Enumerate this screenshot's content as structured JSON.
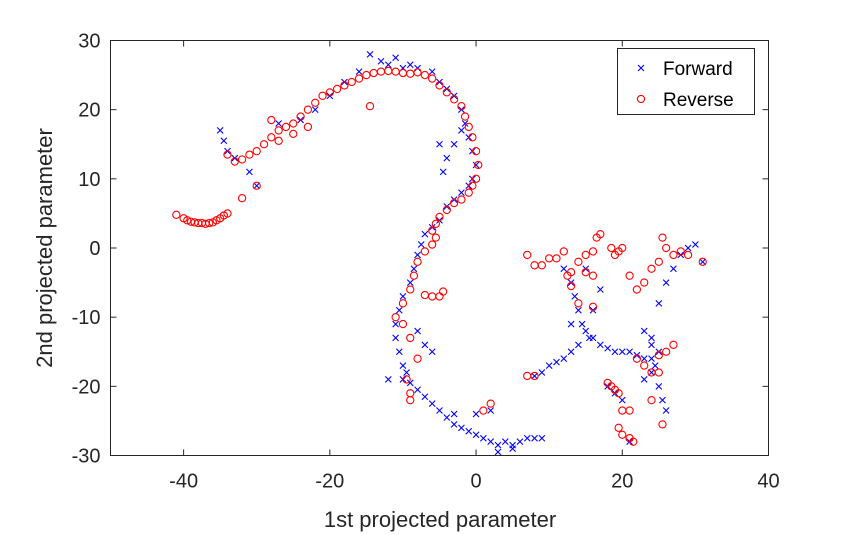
{
  "chart_data": {
    "type": "scatter",
    "title": "",
    "xlabel": "1st projected parameter",
    "ylabel": "2nd projected parameter",
    "xlim": [
      -50,
      40
    ],
    "ylim": [
      -30,
      30
    ],
    "xticks": [
      -40,
      -20,
      0,
      20,
      40
    ],
    "yticks": [
      -30,
      -20,
      -10,
      0,
      10,
      20,
      30
    ],
    "xtick_labels": [
      "-40",
      "-20",
      "0",
      "20",
      "40"
    ],
    "ytick_labels": [
      "-30",
      "-20",
      "-10",
      "0",
      "10",
      "20",
      "30"
    ],
    "grid": false,
    "legend_position": "top-right",
    "series": [
      {
        "name": "Forward",
        "marker": "x",
        "color": "#0000ff",
        "points": [
          [
            -35,
            17
          ],
          [
            -34.5,
            15.5
          ],
          [
            -34,
            14
          ],
          [
            -33,
            13
          ],
          [
            -31,
            11
          ],
          [
            -30,
            9
          ],
          [
            -27,
            18
          ],
          [
            -24,
            18.5
          ],
          [
            -22,
            20
          ],
          [
            -20,
            22
          ],
          [
            -18,
            24
          ],
          [
            -16,
            25.5
          ],
          [
            -14.5,
            28
          ],
          [
            -13,
            27
          ],
          [
            -12,
            26.5
          ],
          [
            -11,
            27.5
          ],
          [
            -10,
            26
          ],
          [
            -9,
            26.5
          ],
          [
            -8,
            26
          ],
          [
            -6,
            25.5
          ],
          [
            -5,
            24
          ],
          [
            -4,
            23
          ],
          [
            -3,
            22
          ],
          [
            -2,
            20
          ],
          [
            -1.5,
            18
          ],
          [
            -1,
            16
          ],
          [
            -0.5,
            14
          ],
          [
            0,
            12
          ],
          [
            -0.5,
            10
          ],
          [
            -1,
            9
          ],
          [
            -2,
            8
          ],
          [
            -3,
            7
          ],
          [
            -4,
            6
          ],
          [
            -5,
            4
          ],
          [
            -6,
            3
          ],
          [
            -7,
            2
          ],
          [
            -7.5,
            0.5
          ],
          [
            -8,
            -1
          ],
          [
            -8.5,
            -3
          ],
          [
            -9,
            -5
          ],
          [
            -10,
            -7
          ],
          [
            -10.5,
            -9
          ],
          [
            -11,
            -11
          ],
          [
            -11,
            -13
          ],
          [
            -10.5,
            -15
          ],
          [
            -10,
            -17
          ],
          [
            -9.5,
            -18
          ],
          [
            -9,
            -19.5
          ],
          [
            -8,
            -20.5
          ],
          [
            -7,
            -21.5
          ],
          [
            -6,
            -22.5
          ],
          [
            -5,
            -23.5
          ],
          [
            -4,
            -24.5
          ],
          [
            -3,
            -25.5
          ],
          [
            -2,
            -26
          ],
          [
            -1,
            -26.5
          ],
          [
            0,
            -27
          ],
          [
            1,
            -27.5
          ],
          [
            2,
            -28
          ],
          [
            3,
            -28.5
          ],
          [
            4,
            -28
          ],
          [
            5,
            -28.5
          ],
          [
            6,
            -28
          ],
          [
            7,
            -27.5
          ],
          [
            8,
            -27.5
          ],
          [
            9,
            -27.5
          ],
          [
            -4,
            13
          ],
          [
            -5,
            15
          ],
          [
            -3,
            15
          ],
          [
            -2,
            17
          ],
          [
            -4.5,
            11
          ],
          [
            -10,
            -19
          ],
          [
            -7,
            -14
          ],
          [
            -6,
            -15
          ],
          [
            -8,
            -12
          ],
          [
            -12,
            -19
          ],
          [
            -3,
            -24
          ],
          [
            0,
            -24
          ],
          [
            2,
            -23.5
          ],
          [
            3,
            -29.5
          ],
          [
            5,
            -29
          ],
          [
            13,
            -5
          ],
          [
            13.5,
            -7
          ],
          [
            14,
            -9
          ],
          [
            14.5,
            -11
          ],
          [
            15,
            -12
          ],
          [
            15.5,
            -13
          ],
          [
            14,
            -14
          ],
          [
            13,
            -15
          ],
          [
            12,
            -16
          ],
          [
            11,
            -16.5
          ],
          [
            10,
            -17
          ],
          [
            9,
            -18
          ],
          [
            8,
            -18.5
          ],
          [
            16,
            -13
          ],
          [
            17,
            -14
          ],
          [
            18,
            -14.5
          ],
          [
            19,
            -15
          ],
          [
            20,
            -15
          ],
          [
            21,
            -15
          ],
          [
            22,
            -15.5
          ],
          [
            23,
            -16
          ],
          [
            24,
            -16
          ],
          [
            24.5,
            -17
          ],
          [
            24,
            -18
          ],
          [
            23,
            -19
          ],
          [
            24,
            -13
          ],
          [
            24,
            -14
          ],
          [
            25,
            -15
          ],
          [
            25,
            -20
          ],
          [
            25.5,
            -22
          ],
          [
            26,
            -23.5
          ],
          [
            23,
            -12
          ],
          [
            25,
            -8
          ],
          [
            26,
            -5
          ],
          [
            27,
            -3
          ],
          [
            28,
            -1
          ],
          [
            29,
            0
          ],
          [
            30,
            0.5
          ],
          [
            31,
            -2
          ],
          [
            16,
            -9
          ],
          [
            17,
            -6
          ],
          [
            13,
            -11
          ],
          [
            12,
            -3
          ],
          [
            15,
            -3
          ],
          [
            18,
            -20
          ],
          [
            19,
            -21
          ],
          [
            20,
            -22
          ],
          [
            21,
            -28
          ]
        ]
      },
      {
        "name": "Reverse",
        "marker": "o",
        "color": "#ff0000",
        "points": [
          [
            -41,
            4.8
          ],
          [
            -40,
            4.3
          ],
          [
            -39.5,
            4
          ],
          [
            -39,
            3.8
          ],
          [
            -38.5,
            3.7
          ],
          [
            -38,
            3.6
          ],
          [
            -37.5,
            3.6
          ],
          [
            -37,
            3.5
          ],
          [
            -36.5,
            3.6
          ],
          [
            -36,
            3.7
          ],
          [
            -35.5,
            4
          ],
          [
            -35,
            4.3
          ],
          [
            -34.5,
            4.7
          ],
          [
            -34,
            5
          ],
          [
            -34,
            13.5
          ],
          [
            -33,
            12.5
          ],
          [
            -32,
            12.8
          ],
          [
            -31,
            13.5
          ],
          [
            -30,
            14
          ],
          [
            -29,
            15
          ],
          [
            -28,
            16
          ],
          [
            -27,
            17
          ],
          [
            -26,
            17.5
          ],
          [
            -25,
            18
          ],
          [
            -24,
            19
          ],
          [
            -23,
            20
          ],
          [
            -22,
            21
          ],
          [
            -21,
            22
          ],
          [
            -20,
            22.5
          ],
          [
            -19,
            23
          ],
          [
            -18,
            23.5
          ],
          [
            -17,
            24
          ],
          [
            -16,
            24.5
          ],
          [
            -15,
            25
          ],
          [
            -14,
            25.3
          ],
          [
            -13,
            25.5
          ],
          [
            -12,
            25.6
          ],
          [
            -11,
            25.5
          ],
          [
            -10,
            25.3
          ],
          [
            -9,
            25.2
          ],
          [
            -8,
            25.4
          ],
          [
            -7,
            25
          ],
          [
            -6,
            24.5
          ],
          [
            -5,
            23.5
          ],
          [
            -4,
            22.5
          ],
          [
            -3,
            21.5
          ],
          [
            -2,
            20.5
          ],
          [
            -1.5,
            19
          ],
          [
            -1,
            17.5
          ],
          [
            -0.5,
            16
          ],
          [
            0,
            14
          ],
          [
            0.3,
            12
          ],
          [
            0,
            10
          ],
          [
            -0.5,
            9
          ],
          [
            -1,
            8
          ],
          [
            -2,
            7
          ],
          [
            -3,
            6.5
          ],
          [
            -4,
            5.5
          ],
          [
            -5,
            4.5
          ],
          [
            -5.5,
            3.5
          ],
          [
            -6,
            2.5
          ],
          [
            -5.5,
            1.5
          ],
          [
            -6,
            0.5
          ],
          [
            -7,
            -0.5
          ],
          [
            -8,
            -2
          ],
          [
            -8.5,
            -4
          ],
          [
            -9,
            -6
          ],
          [
            -10,
            -8
          ],
          [
            -11,
            -10
          ],
          [
            -10,
            -11
          ],
          [
            -9,
            -13
          ],
          [
            -8,
            -16
          ],
          [
            -9.5,
            -19
          ],
          [
            -9,
            -21
          ],
          [
            -9,
            -22
          ],
          [
            -7,
            -6.8
          ],
          [
            -6,
            -7
          ],
          [
            -4.5,
            -6.3
          ],
          [
            -5,
            -7
          ],
          [
            -14.5,
            20.5
          ],
          [
            -30,
            9
          ],
          [
            -32,
            7.2
          ],
          [
            -25,
            16.5
          ],
          [
            -27,
            15.5
          ],
          [
            -23,
            17.5
          ],
          [
            -28,
            18.5
          ],
          [
            2,
            -22.5
          ],
          [
            1,
            -23.5
          ],
          [
            8,
            -18.5
          ],
          [
            7,
            -18.5
          ],
          [
            7,
            -1
          ],
          [
            8,
            -2.5
          ],
          [
            9,
            -2.5
          ],
          [
            10,
            -1.5
          ],
          [
            11,
            -1.5
          ],
          [
            12,
            -0.5
          ],
          [
            13,
            -3.5
          ],
          [
            14,
            -2
          ],
          [
            15,
            -3.5
          ],
          [
            16,
            -4
          ],
          [
            15,
            -1
          ],
          [
            16,
            -0.5
          ],
          [
            16.5,
            1.5
          ],
          [
            17,
            2
          ],
          [
            18.5,
            0
          ],
          [
            19,
            -1
          ],
          [
            19.5,
            -0.5
          ],
          [
            20,
            0
          ],
          [
            12.5,
            -4
          ],
          [
            13,
            -5.5
          ],
          [
            14,
            -8
          ],
          [
            16,
            -8.5
          ],
          [
            21,
            -4
          ],
          [
            22,
            -6
          ],
          [
            23,
            -5
          ],
          [
            24,
            -3
          ],
          [
            25,
            -2
          ],
          [
            25.5,
            1.5
          ],
          [
            26,
            0
          ],
          [
            27,
            -1
          ],
          [
            28,
            -0.5
          ],
          [
            29,
            -1
          ],
          [
            31,
            -2
          ],
          [
            22,
            -16
          ],
          [
            23,
            -17
          ],
          [
            24,
            -18
          ],
          [
            25,
            -15.5
          ],
          [
            26,
            -15
          ],
          [
            27,
            -14
          ],
          [
            25,
            -18
          ],
          [
            24,
            -22
          ],
          [
            25.5,
            -25.5
          ],
          [
            18,
            -19.5
          ],
          [
            18.5,
            -20
          ],
          [
            19,
            -20.5
          ],
          [
            19.5,
            -21
          ],
          [
            20,
            -23.5
          ],
          [
            21,
            -23.5
          ],
          [
            19.5,
            -26
          ],
          [
            20,
            -27
          ],
          [
            21,
            -27.5
          ],
          [
            21.5,
            -28
          ]
        ]
      }
    ]
  }
}
